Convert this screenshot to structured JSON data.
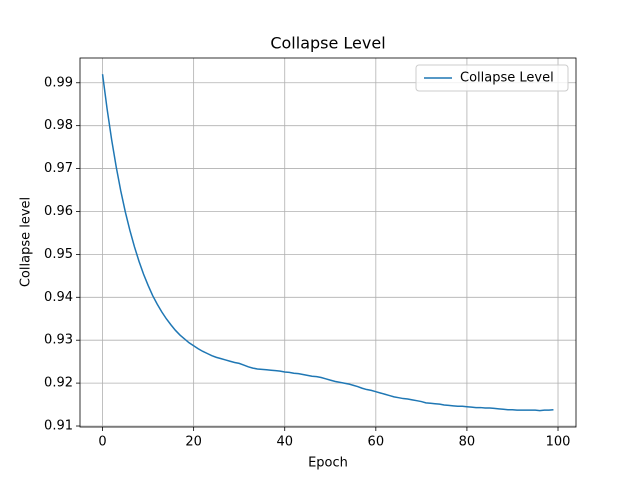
{
  "chart_data": {
    "type": "line",
    "title": "Collapse Level",
    "xlabel": "Epoch",
    "ylabel": "Collapse level",
    "x": [
      0,
      1,
      2,
      3,
      4,
      5,
      6,
      7,
      8,
      9,
      10,
      11,
      12,
      13,
      14,
      15,
      16,
      17,
      18,
      19,
      20,
      21,
      22,
      23,
      24,
      25,
      26,
      27,
      28,
      29,
      30,
      31,
      32,
      33,
      34,
      35,
      36,
      37,
      38,
      39,
      40,
      41,
      42,
      43,
      44,
      45,
      46,
      47,
      48,
      49,
      50,
      51,
      52,
      53,
      54,
      55,
      56,
      57,
      58,
      59,
      60,
      61,
      62,
      63,
      64,
      65,
      66,
      67,
      68,
      69,
      70,
      71,
      72,
      73,
      74,
      75,
      76,
      77,
      78,
      79,
      80,
      81,
      82,
      83,
      84,
      85,
      86,
      87,
      88,
      89,
      90,
      91,
      92,
      93,
      94,
      95,
      96,
      97,
      98,
      99
    ],
    "series": [
      {
        "name": "Collapse Level",
        "color": "#1f77b4",
        "values": [
          0.992,
          0.9839,
          0.9767,
          0.9704,
          0.9648,
          0.9599,
          0.9556,
          0.9518,
          0.9484,
          0.9454,
          0.9428,
          0.9404,
          0.9384,
          0.9366,
          0.935,
          0.9336,
          0.9323,
          0.9312,
          0.9303,
          0.9294,
          0.9287,
          0.928,
          0.9274,
          0.9269,
          0.9264,
          0.926,
          0.9257,
          0.9254,
          0.9251,
          0.9248,
          0.9246,
          0.9242,
          0.9238,
          0.9235,
          0.9233,
          0.9232,
          0.9231,
          0.923,
          0.9229,
          0.9228,
          0.9226,
          0.9225,
          0.9223,
          0.9222,
          0.922,
          0.9218,
          0.9216,
          0.9215,
          0.9213,
          0.921,
          0.9207,
          0.9204,
          0.9202,
          0.92,
          0.9198,
          0.9195,
          0.9192,
          0.9188,
          0.9185,
          0.9183,
          0.918,
          0.9177,
          0.9174,
          0.9171,
          0.9168,
          0.9166,
          0.9164,
          0.9163,
          0.9161,
          0.9159,
          0.9157,
          0.9154,
          0.9153,
          0.9152,
          0.9151,
          0.9149,
          0.9148,
          0.9147,
          0.9146,
          0.9146,
          0.9145,
          0.9144,
          0.9143,
          0.9143,
          0.9142,
          0.9142,
          0.9141,
          0.914,
          0.9139,
          0.9138,
          0.9138,
          0.9137,
          0.9137,
          0.9137,
          0.9137,
          0.9137,
          0.9136,
          0.9137,
          0.9137,
          0.9138
        ]
      }
    ],
    "xlim": [
      -4.95,
      103.95
    ],
    "ylim": [
      0.90977,
      0.99577
    ],
    "xticks": [
      0,
      20,
      40,
      60,
      80,
      100
    ],
    "yticks": [
      0.91,
      0.92,
      0.93,
      0.94,
      0.95,
      0.96,
      0.97,
      0.98,
      0.99
    ],
    "grid": true,
    "legend": "upper right"
  }
}
